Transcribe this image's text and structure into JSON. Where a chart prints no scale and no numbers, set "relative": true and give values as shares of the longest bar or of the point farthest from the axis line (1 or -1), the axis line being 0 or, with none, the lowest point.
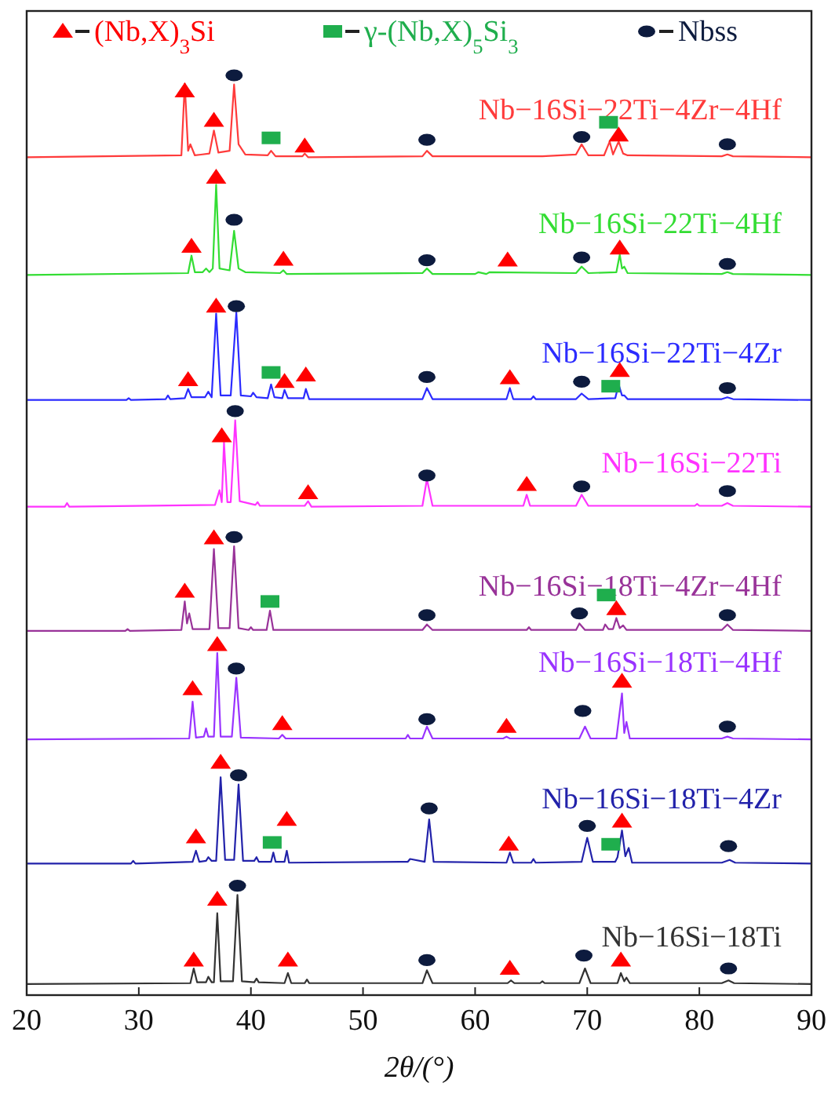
{
  "chart_data": {
    "type": "line",
    "xlabel": "2θ/(°)",
    "xlim": [
      20,
      90
    ],
    "xticks": [
      20,
      30,
      40,
      50,
      60,
      70,
      80,
      90
    ],
    "relative": true,
    "legend": "top",
    "line_style": "solid",
    "grid": false,
    "series": [
      {
        "name": "Nb−16Si−22Ti−4Zr−4Hf",
        "color": "#ff3b3b",
        "x": [
          20,
          33.8,
          34.1,
          34.4,
          34.6,
          35,
          36.3,
          36.7,
          37.1,
          38.1,
          38.5,
          38.9,
          39.5,
          41.5,
          41.8,
          42.2,
          44.6,
          44.8,
          45.1,
          55.3,
          55.7,
          56.2,
          66,
          69,
          69.5,
          70.1,
          71.5,
          72,
          72.3,
          72.8,
          73.2,
          73.6,
          82,
          82.5,
          83,
          90
        ],
        "values": [
          0.911,
          0.913,
          0.991,
          0.918,
          0.925,
          0.913,
          0.915,
          0.94,
          0.916,
          0.918,
          0.99,
          0.925,
          0.914,
          0.913,
          0.918,
          0.912,
          0.912,
          0.915,
          0.911,
          0.912,
          0.918,
          0.912,
          0.912,
          0.914,
          0.925,
          0.913,
          0.913,
          0.928,
          0.914,
          0.928,
          0.915,
          0.913,
          0.912,
          0.914,
          0.912,
          0.911
        ]
      },
      {
        "name": "Nb−16Si−22Ti−4Hf",
        "color": "#33dd33",
        "x": [
          20,
          34.4,
          34.7,
          35,
          35.7,
          36,
          36.3,
          36.6,
          36.9,
          37.2,
          38.1,
          38.5,
          38.9,
          39.5,
          42.6,
          42.9,
          43.2,
          55.3,
          55.7,
          56.2,
          60,
          60.3,
          61,
          61.3,
          69,
          69.5,
          70.1,
          72.6,
          72.9,
          73.1,
          73.3,
          73.6,
          82,
          82.5,
          83,
          90
        ],
        "values": [
          0.783,
          0.785,
          0.804,
          0.786,
          0.786,
          0.79,
          0.786,
          0.79,
          0.881,
          0.79,
          0.788,
          0.831,
          0.79,
          0.786,
          0.785,
          0.788,
          0.784,
          0.785,
          0.79,
          0.784,
          0.784,
          0.786,
          0.784,
          0.786,
          0.785,
          0.792,
          0.785,
          0.786,
          0.805,
          0.79,
          0.792,
          0.785,
          0.784,
          0.786,
          0.784,
          0.783
        ]
      },
      {
        "name": "Nb−16Si−22Ti−4Zr",
        "color": "#2b2bff",
        "x": [
          20,
          28.9,
          29.1,
          29.3,
          32.4,
          32.6,
          32.8,
          34.1,
          34.4,
          34.7,
          35.9,
          36.2,
          36.5,
          36.9,
          37.3,
          38.2,
          38.7,
          39.1,
          40,
          40.2,
          40.5,
          41.5,
          41.8,
          42.1,
          42.8,
          43,
          43.3,
          44.7,
          44.9,
          45.2,
          55.3,
          55.7,
          56.2,
          62.8,
          63.1,
          63.4,
          65,
          65.2,
          65.4,
          69,
          69.5,
          70.1,
          72.5,
          72.8,
          73.1,
          73.3,
          73.6,
          82,
          82.5,
          83,
          90
        ],
        "values": [
          0.647,
          0.647,
          0.649,
          0.647,
          0.648,
          0.652,
          0.648,
          0.649,
          0.659,
          0.65,
          0.65,
          0.656,
          0.65,
          0.741,
          0.652,
          0.652,
          0.742,
          0.652,
          0.651,
          0.655,
          0.65,
          0.649,
          0.664,
          0.65,
          0.649,
          0.658,
          0.649,
          0.649,
          0.659,
          0.648,
          0.648,
          0.66,
          0.648,
          0.648,
          0.66,
          0.648,
          0.648,
          0.651,
          0.648,
          0.648,
          0.654,
          0.648,
          0.649,
          0.664,
          0.652,
          0.652,
          0.648,
          0.648,
          0.65,
          0.648,
          0.647
        ]
      },
      {
        "name": "Nb−16Si−22Ti",
        "color": "#ff33ff",
        "x": [
          20,
          23.4,
          23.6,
          23.8,
          36.8,
          37.2,
          37.4,
          37.6,
          37.9,
          38.2,
          38.6,
          39,
          40.4,
          40.6,
          40.8,
          44.8,
          45.1,
          45.4,
          55.3,
          55.7,
          56.2,
          64.3,
          64.6,
          64.9,
          69,
          69.5,
          70.1,
          79.6,
          79.8,
          80,
          82,
          82.5,
          83,
          90
        ],
        "values": [
          0.531,
          0.531,
          0.535,
          0.531,
          0.533,
          0.549,
          0.536,
          0.601,
          0.536,
          0.536,
          0.625,
          0.537,
          0.533,
          0.536,
          0.532,
          0.532,
          0.537,
          0.531,
          0.532,
          0.561,
          0.532,
          0.532,
          0.544,
          0.532,
          0.532,
          0.544,
          0.532,
          0.532,
          0.534,
          0.532,
          0.532,
          0.535,
          0.532,
          0.531
        ]
      },
      {
        "name": "Nb−16Si−18Ti−4Zr−4Hf",
        "color": "#993399",
        "x": [
          20,
          28.8,
          29,
          29.2,
          33.8,
          34.1,
          34.3,
          34.5,
          34.8,
          36.3,
          36.7,
          37.1,
          38.1,
          38.5,
          38.9,
          39.8,
          40,
          40.2,
          41.4,
          41.7,
          42,
          55.3,
          55.7,
          56.2,
          64.6,
          64.8,
          65,
          69,
          69.3,
          69.8,
          71.4,
          71.6,
          71.9,
          72.3,
          72.6,
          72.9,
          73.2,
          73.5,
          82,
          82.5,
          83,
          90
        ],
        "values": [
          0.396,
          0.396,
          0.398,
          0.396,
          0.397,
          0.428,
          0.404,
          0.415,
          0.398,
          0.398,
          0.485,
          0.399,
          0.399,
          0.488,
          0.399,
          0.397,
          0.4,
          0.397,
          0.397,
          0.418,
          0.397,
          0.397,
          0.403,
          0.397,
          0.397,
          0.4,
          0.397,
          0.397,
          0.404,
          0.397,
          0.397,
          0.403,
          0.398,
          0.398,
          0.41,
          0.399,
          0.402,
          0.397,
          0.397,
          0.403,
          0.397,
          0.396
        ]
      },
      {
        "name": "Nb−16Si−18Ti−4Hf",
        "color": "#9933ff",
        "x": [
          20,
          34.5,
          34.8,
          35.1,
          35.8,
          36,
          36.2,
          36.7,
          37,
          37.3,
          38.3,
          38.7,
          39.1,
          42.5,
          42.8,
          43.1,
          53.8,
          54,
          54.2,
          55.3,
          55.7,
          56.2,
          62.5,
          62.8,
          63.1,
          69.3,
          69.8,
          70.3,
          72.6,
          73.1,
          73.3,
          73.5,
          73.8,
          82,
          82.5,
          83,
          90
        ],
        "values": [
          0.278,
          0.279,
          0.319,
          0.28,
          0.281,
          0.29,
          0.281,
          0.281,
          0.372,
          0.281,
          0.281,
          0.345,
          0.28,
          0.279,
          0.283,
          0.279,
          0.279,
          0.283,
          0.279,
          0.279,
          0.292,
          0.279,
          0.279,
          0.281,
          0.279,
          0.279,
          0.292,
          0.279,
          0.279,
          0.328,
          0.285,
          0.297,
          0.279,
          0.279,
          0.281,
          0.279,
          0.278
        ]
      },
      {
        "name": "Nb−16Si−18Ti−4Zr",
        "color": "#2222aa",
        "x": [
          20,
          29.3,
          29.5,
          29.7,
          34.8,
          35.1,
          35.4,
          36,
          36.2,
          36.5,
          36.9,
          37.3,
          37.7,
          38.5,
          38.9,
          39.3,
          40.3,
          40.5,
          40.7,
          41.8,
          42,
          42.2,
          43,
          43.2,
          43.4,
          54,
          54.2,
          55.5,
          55.9,
          56.3,
          62.8,
          63.1,
          63.4,
          65,
          65.2,
          65.4,
          69.5,
          70,
          70.5,
          72.5,
          72.7,
          73.1,
          73.4,
          73.7,
          74,
          82,
          82.7,
          83.2,
          90
        ],
        "values": [
          0.143,
          0.143,
          0.146,
          0.143,
          0.145,
          0.157,
          0.145,
          0.146,
          0.15,
          0.146,
          0.146,
          0.237,
          0.147,
          0.147,
          0.229,
          0.146,
          0.146,
          0.15,
          0.145,
          0.145,
          0.155,
          0.145,
          0.145,
          0.157,
          0.144,
          0.145,
          0.148,
          0.145,
          0.191,
          0.145,
          0.144,
          0.155,
          0.144,
          0.144,
          0.148,
          0.144,
          0.145,
          0.171,
          0.145,
          0.145,
          0.15,
          0.179,
          0.151,
          0.16,
          0.144,
          0.144,
          0.147,
          0.144,
          0.143
        ]
      },
      {
        "name": "Nb−16Si−18Ti",
        "color": "#333333",
        "x": [
          20,
          34.6,
          34.9,
          35.2,
          36,
          36.2,
          36.5,
          36.7,
          37,
          37.3,
          38.4,
          38.8,
          39.2,
          40.3,
          40.5,
          40.7,
          43,
          43.3,
          43.6,
          44.8,
          45,
          45.2,
          55.3,
          55.7,
          56.2,
          62.9,
          63.2,
          63.5,
          65.8,
          66,
          66.2,
          69.3,
          69.8,
          70.3,
          72.7,
          73,
          73.3,
          73.5,
          73.8,
          82,
          82.6,
          83.1,
          90
        ],
        "values": [
          0.012,
          0.013,
          0.029,
          0.014,
          0.014,
          0.02,
          0.014,
          0.014,
          0.089,
          0.015,
          0.015,
          0.109,
          0.015,
          0.014,
          0.018,
          0.014,
          0.013,
          0.024,
          0.013,
          0.013,
          0.017,
          0.013,
          0.013,
          0.027,
          0.013,
          0.013,
          0.016,
          0.013,
          0.013,
          0.015,
          0.013,
          0.013,
          0.029,
          0.013,
          0.013,
          0.024,
          0.015,
          0.019,
          0.013,
          0.013,
          0.016,
          0.013,
          0.012
        ]
      },
      {
        "name": "(Nb,X)$_{3}$Si",
        "type": "scatter",
        "marker": "triangle",
        "color": "#ff0000",
        "x": [
          34.1,
          36.7,
          44.8,
          72.8,
          34.7,
          36.9,
          42.9,
          62.9,
          72.9,
          34.4,
          36.9,
          43,
          44.9,
          63.1,
          72.9,
          37.4,
          45.1,
          64.6,
          34.1,
          36.7,
          72.6,
          34.8,
          37,
          42.8,
          62.8,
          73.1,
          35.1,
          37.3,
          43.2,
          63,
          73.1,
          34.9,
          37,
          43.3,
          63.1,
          73
        ],
        "values": [
          0.983,
          0.951,
          0.923,
          0.935,
          0.814,
          0.889,
          0.8,
          0.799,
          0.812,
          0.669,
          0.749,
          0.667,
          0.674,
          0.671,
          0.679,
          0.608,
          0.546,
          0.555,
          0.439,
          0.497,
          0.42,
          0.333,
          0.381,
          0.295,
          0.292,
          0.341,
          0.172,
          0.253,
          0.191,
          0.164,
          0.189,
          0.038,
          0.104,
          0.038,
          0.029,
          0.038
        ]
      },
      {
        "name": "γ-(Nb,X)$_{5}$Si$_{3}$",
        "type": "scatter",
        "marker": "square",
        "color": "#1fae4d",
        "x": [
          41.8,
          71.9,
          41.8,
          72.1,
          41.7,
          71.7,
          41.9,
          72.1
        ],
        "values": [
          0.932,
          0.949,
          0.677,
          0.662,
          0.428,
          0.435,
          0.166,
          0.164
        ]
      },
      {
        "name": "Nbss",
        "type": "scatter",
        "marker": "circle",
        "color": "#0d1b3e",
        "x": [
          38.5,
          55.7,
          69.5,
          82.5,
          38.5,
          55.7,
          69.5,
          82.5,
          38.7,
          55.7,
          69.5,
          82.5,
          38.6,
          55.7,
          69.5,
          82.5,
          38.5,
          55.7,
          69.3,
          82.5,
          38.7,
          55.7,
          69.6,
          82.5,
          38.9,
          55.9,
          70,
          82.6,
          38.8,
          55.7,
          69.7,
          82.6
        ],
        "values": [
          1,
          0.93,
          0.933,
          0.925,
          0.843,
          0.799,
          0.802,
          0.795,
          0.749,
          0.672,
          0.667,
          0.66,
          0.635,
          0.565,
          0.553,
          0.548,
          0.498,
          0.413,
          0.415,
          0.413,
          0.355,
          0.3,
          0.309,
          0.292,
          0.239,
          0.203,
          0.184,
          0.162,
          0.119,
          0.038,
          0.043,
          0.029
        ]
      }
    ]
  }
}
